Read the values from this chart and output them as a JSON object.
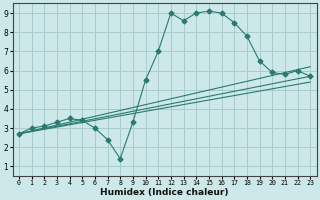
{
  "xlabel": "Humidex (Indice chaleur)",
  "ylabel": "",
  "bg_color": "#cce8e8",
  "grid_color": "#aacccc",
  "line_color": "#2a7a70",
  "xlim": [
    -0.5,
    23.5
  ],
  "ylim": [
    0.5,
    9.5
  ],
  "xticks": [
    0,
    1,
    2,
    3,
    4,
    5,
    6,
    7,
    8,
    9,
    10,
    11,
    12,
    13,
    14,
    15,
    16,
    17,
    18,
    19,
    20,
    21,
    22,
    23
  ],
  "yticks": [
    1,
    2,
    3,
    4,
    5,
    6,
    7,
    8,
    9
  ],
  "line1_x": [
    0,
    1,
    2,
    3,
    4,
    5,
    6,
    7,
    8,
    9,
    10,
    11,
    12,
    13,
    14,
    15,
    16,
    17,
    18,
    19,
    20,
    21,
    22,
    23
  ],
  "line1_y": [
    2.7,
    3.0,
    3.1,
    3.3,
    3.5,
    3.4,
    3.0,
    2.4,
    1.4,
    3.3,
    5.5,
    7.0,
    9.0,
    8.6,
    9.0,
    9.1,
    9.0,
    8.5,
    7.8,
    6.5,
    5.9,
    5.8,
    6.0,
    5.7
  ],
  "line2_x": [
    0,
    23
  ],
  "line2_y": [
    2.7,
    5.7
  ],
  "line3_x": [
    0,
    23
  ],
  "line3_y": [
    2.7,
    6.2
  ],
  "line4_x": [
    0,
    23
  ],
  "line4_y": [
    2.7,
    5.4
  ],
  "marker": "D",
  "markersize": 2.5
}
